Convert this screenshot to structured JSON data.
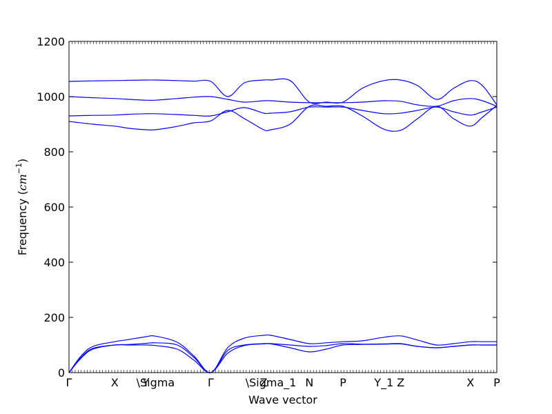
{
  "chart_data": {
    "type": "line",
    "title": "",
    "xlabel": "Wave vector",
    "ylabel": "Frequency",
    "ylabel_unit": "cm",
    "ylabel_unit_exp": "−1",
    "ylim": [
      0,
      1200
    ],
    "yticks": [
      0,
      200,
      400,
      600,
      800,
      1000,
      1200
    ],
    "xlim": [
      0,
      1.78
    ],
    "xticks": [
      {
        "pos": 0.0,
        "label": "Γ"
      },
      {
        "pos": 0.19,
        "label": "X"
      },
      {
        "pos": 0.32,
        "label": "Y"
      },
      {
        "pos": 0.36,
        "label": "\\Sigma"
      },
      {
        "pos": 0.59,
        "label": "Γ"
      },
      {
        "pos": 0.81,
        "label": "Z"
      },
      {
        "pos": 0.84,
        "label": "\\Sigma_1"
      },
      {
        "pos": 1.0,
        "label": "N"
      },
      {
        "pos": 1.14,
        "label": "P"
      },
      {
        "pos": 1.31,
        "label": "Y_1"
      },
      {
        "pos": 1.38,
        "label": "Z"
      },
      {
        "pos": 1.67,
        "label": "X"
      },
      {
        "pos": 1.78,
        "label": "P"
      }
    ],
    "grid": false,
    "line_color": "#0000ff",
    "series": [
      {
        "x": [
          0,
          0.1,
          0.19,
          0.25,
          0.32,
          0.36,
          0.45,
          0.52,
          0.59,
          0.66,
          0.73,
          0.81,
          0.84,
          0.92,
          1.0,
          1.07,
          1.14,
          1.22,
          1.31,
          1.38,
          1.45,
          1.53,
          1.6,
          1.67,
          1.72,
          1.78
        ],
        "y": [
          1055,
          1057,
          1058,
          1059,
          1060,
          1060,
          1058,
          1056,
          1055,
          1000,
          1050,
          1060,
          1060,
          1058,
          980,
          980,
          980,
          1030,
          1058,
          1060,
          1040,
          990,
          1030,
          1058,
          1040,
          970
        ]
      },
      {
        "x": [
          0,
          0.1,
          0.19,
          0.25,
          0.32,
          0.36,
          0.45,
          0.52,
          0.59,
          0.66,
          0.73,
          0.81,
          0.84,
          0.92,
          1.0,
          1.07,
          1.14,
          1.22,
          1.31,
          1.38,
          1.45,
          1.53,
          1.6,
          1.67,
          1.72,
          1.78
        ],
        "y": [
          1000,
          996,
          993,
          990,
          987,
          987,
          993,
          998,
          1000,
          990,
          980,
          985,
          985,
          980,
          978,
          978,
          978,
          980,
          985,
          983,
          970,
          965,
          985,
          993,
          985,
          965
        ]
      },
      {
        "x": [
          0,
          0.1,
          0.19,
          0.25,
          0.32,
          0.36,
          0.45,
          0.52,
          0.59,
          0.66,
          0.73,
          0.81,
          0.84,
          0.92,
          1.0,
          1.07,
          1.14,
          1.22,
          1.31,
          1.38,
          1.45,
          1.53,
          1.6,
          1.67,
          1.72,
          1.78
        ],
        "y": [
          930,
          932,
          933,
          936,
          938,
          938,
          935,
          932,
          930,
          945,
          960,
          940,
          940,
          945,
          962,
          962,
          962,
          950,
          938,
          940,
          950,
          962,
          945,
          933,
          945,
          962
        ]
      },
      {
        "x": [
          0,
          0.1,
          0.19,
          0.25,
          0.32,
          0.36,
          0.45,
          0.52,
          0.59,
          0.66,
          0.73,
          0.81,
          0.84,
          0.92,
          1.0,
          1.07,
          1.14,
          1.22,
          1.31,
          1.38,
          1.45,
          1.53,
          1.6,
          1.67,
          1.72,
          1.78
        ],
        "y": [
          910,
          900,
          893,
          885,
          880,
          880,
          892,
          905,
          912,
          950,
          920,
          880,
          880,
          900,
          965,
          965,
          965,
          930,
          882,
          878,
          920,
          965,
          920,
          893,
          925,
          968
        ]
      },
      {
        "x": [
          0,
          0.05,
          0.1,
          0.19,
          0.25,
          0.32,
          0.36,
          0.45,
          0.52,
          0.59,
          0.66,
          0.73,
          0.81,
          0.84,
          0.92,
          1.0,
          1.07,
          1.14,
          1.22,
          1.31,
          1.38,
          1.45,
          1.53,
          1.6,
          1.67,
          1.72,
          1.78
        ],
        "y": [
          0,
          60,
          95,
          112,
          120,
          130,
          132,
          110,
          60,
          0,
          90,
          125,
          135,
          135,
          120,
          105,
          108,
          112,
          115,
          128,
          133,
          118,
          100,
          105,
          112,
          112,
          112
        ]
      },
      {
        "x": [
          0,
          0.05,
          0.1,
          0.19,
          0.25,
          0.32,
          0.36,
          0.45,
          0.52,
          0.59,
          0.66,
          0.73,
          0.81,
          0.84,
          0.92,
          1.0,
          1.07,
          1.14,
          1.22,
          1.31,
          1.38,
          1.45,
          1.53,
          1.6,
          1.67,
          1.72,
          1.78
        ],
        "y": [
          0,
          55,
          88,
          100,
          102,
          106,
          108,
          100,
          55,
          0,
          80,
          100,
          105,
          105,
          100,
          95,
          98,
          105,
          103,
          104,
          105,
          95,
          90,
          95,
          100,
          100,
          100
        ]
      },
      {
        "x": [
          0,
          0.05,
          0.1,
          0.19,
          0.25,
          0.32,
          0.36,
          0.45,
          0.52,
          0.59,
          0.66,
          0.73,
          0.81,
          0.84,
          0.92,
          1.0,
          1.07,
          1.14,
          1.22,
          1.31,
          1.38,
          1.45,
          1.53,
          1.6,
          1.67,
          1.72,
          1.78
        ],
        "y": [
          0,
          52,
          85,
          100,
          100,
          100,
          98,
          85,
          45,
          0,
          70,
          98,
          104,
          104,
          90,
          75,
          85,
          100,
          102,
          103,
          104,
          95,
          90,
          95,
          100,
          100,
          100
        ]
      }
    ]
  }
}
